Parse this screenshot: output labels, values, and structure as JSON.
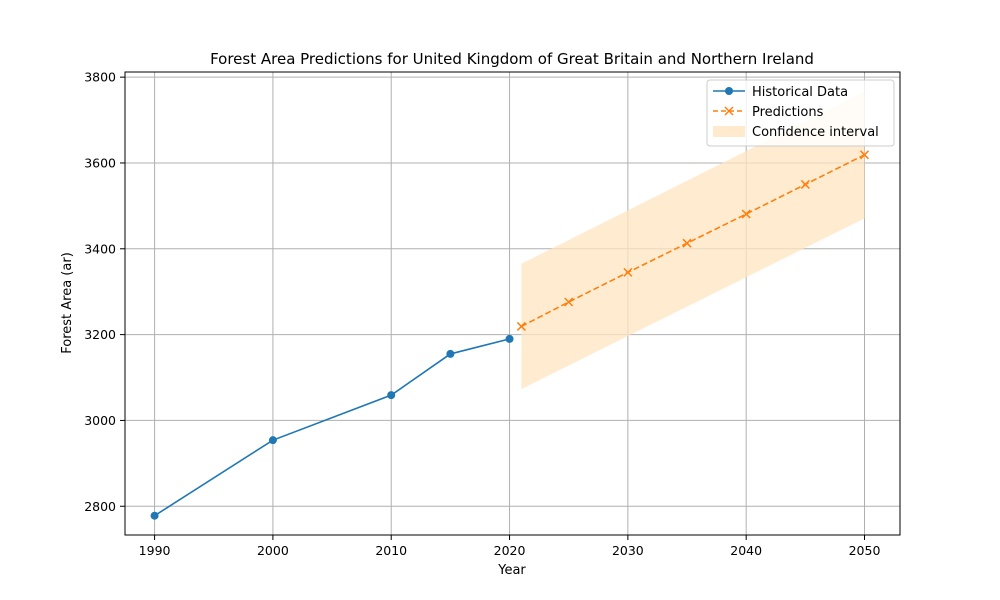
{
  "chart_data": {
    "type": "line",
    "title": "Forest Area Predictions for United Kingdom of Great Britain and Northern Ireland",
    "xlabel": "Year",
    "ylabel": "Forest Area (ar)",
    "xlim": [
      1987.5,
      2053
    ],
    "ylim": [
      2733,
      3812
    ],
    "xticks": [
      1990,
      2000,
      2010,
      2020,
      2030,
      2040,
      2050
    ],
    "yticks": [
      2800,
      3000,
      3200,
      3400,
      3600,
      3800
    ],
    "grid": true,
    "legend_position": "top-right",
    "series": [
      {
        "name": "Historical Data",
        "color": "#1f77b4",
        "marker": "circle",
        "linestyle": "solid",
        "x": [
          1990,
          2000,
          2010,
          2015,
          2020
        ],
        "y": [
          2778,
          2954,
          3059,
          3155,
          3190
        ]
      },
      {
        "name": "Predictions",
        "color": "#ff7f0e",
        "marker": "x",
        "linestyle": "dashed",
        "x": [
          2021,
          2025,
          2030,
          2035,
          2040,
          2045,
          2050
        ],
        "y": [
          3219,
          3276,
          3345,
          3413,
          3481,
          3550,
          3619
        ]
      }
    ],
    "confidence_interval": {
      "name": "Confidence interval",
      "color": "#ffe5c0",
      "x": [
        2021,
        2050
      ],
      "lower": [
        3073,
        3471
      ],
      "upper": [
        3365,
        3766
      ]
    }
  }
}
